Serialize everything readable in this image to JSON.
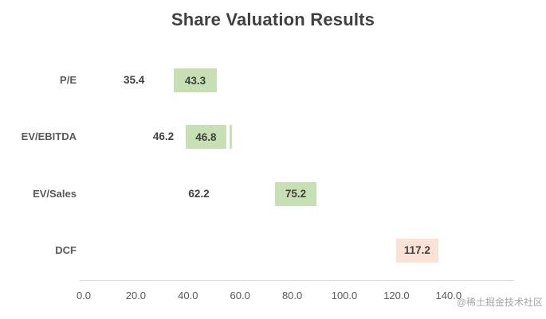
{
  "watermark": "@稀土掘金技术社区",
  "chart_data": {
    "type": "bar",
    "orientation": "horizontal",
    "title": "Share Valuation Results",
    "xlabel": "",
    "ylabel": "",
    "xlim": [
      0,
      150
    ],
    "grid": false,
    "legend": "none",
    "xtick_values": [
      0,
      20,
      40,
      60,
      80,
      100,
      120,
      140
    ],
    "xtick_labels": [
      "0.0",
      "20.0",
      "40.0",
      "60.0",
      "80.0",
      "100.0",
      "120.0",
      "140.0"
    ],
    "categories": [
      "P/E",
      "EV/EBITDA",
      "EV/Sales",
      "DCF"
    ],
    "rows": [
      {
        "category": "P/E",
        "outside_label": "35.4",
        "outside_label_x": 19.3,
        "bar_start": 34.6,
        "bar_end": 51.0,
        "bar_label": "43.3",
        "bar_color": "#c6e0b4"
      },
      {
        "category": "EV/EBITDA",
        "outside_label": "46.2",
        "outside_label_x": 30.6,
        "bar_start": 39.2,
        "bar_end": 54.6,
        "bar_label": "46.8",
        "bar_color": "#c6e0b4",
        "marker_x": 55.9,
        "marker_color": "#c6e0b4"
      },
      {
        "category": "EV/Sales",
        "outside_label": "62.2",
        "outside_label_x": 44.2,
        "bar_start": 73.4,
        "bar_end": 89.3,
        "bar_label": "75.2",
        "bar_color": "#c6e0b4"
      },
      {
        "category": "DCF",
        "bar_start": 119.9,
        "bar_end": 136.0,
        "bar_label": "117.2",
        "bar_color": "#fbe2d5"
      }
    ],
    "colors": {
      "green_bar": "#c6e0b4",
      "peach_bar": "#fbe2d5",
      "title_text": "#404040",
      "value_text": "#404040",
      "axis_text": "#595959",
      "axis_line": "#d9d9d9",
      "watermark": "#a6a6a6",
      "background": "#ffffff"
    }
  }
}
